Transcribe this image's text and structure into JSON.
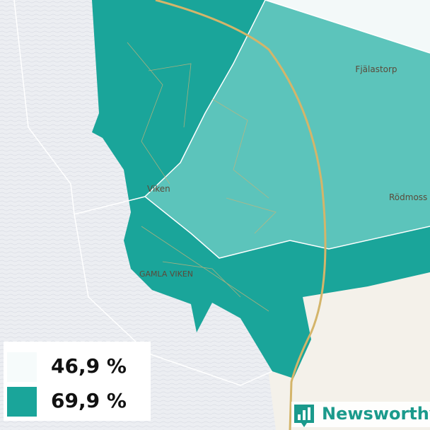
{
  "places": [
    "Fjälastorp",
    "Rödmoss",
    "Viken",
    "GAMLA VIKEN"
  ],
  "legend": {
    "items": [
      {
        "label": "46,9 %"
      },
      {
        "label": "69,9 %"
      }
    ]
  },
  "logo": {
    "text": "Newsworthy"
  }
}
